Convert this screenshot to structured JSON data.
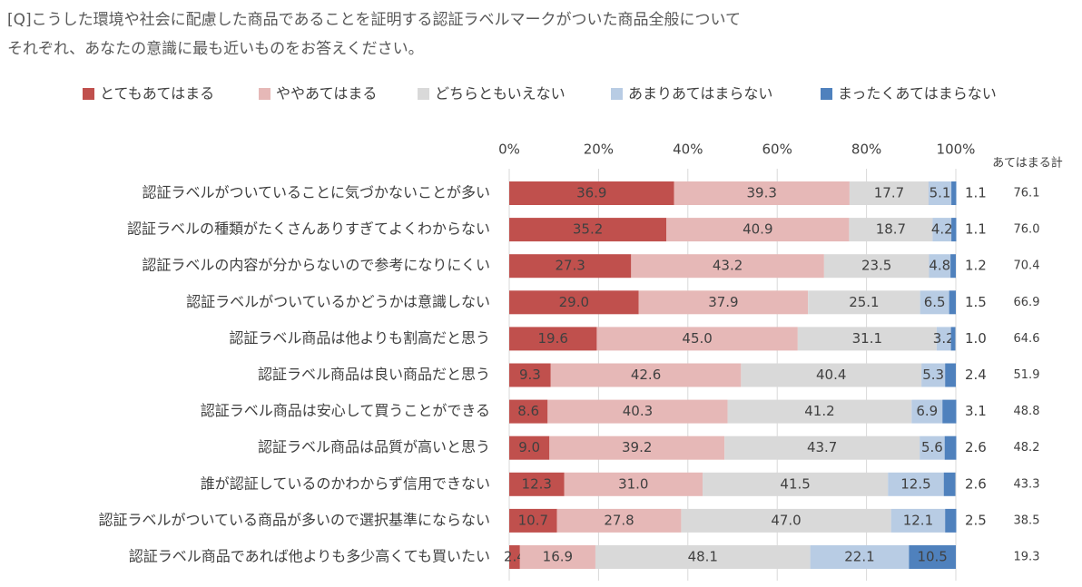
{
  "chart_data": {
    "type": "stacked_barh",
    "title": [
      "[Q]こうした環境や社会に配慮した商品であることを証明する認証ラベルマークがついた商品全般について",
      "それぞれ、あなたの意識に最も近いものをお答えください。"
    ],
    "categories": [
      "認証ラベルがついていることに気づかないことが多い",
      "認証ラベルの種類がたくさんありすぎてよくわからない",
      "認証ラベルの内容が分からないので参考になりにくい",
      "認証ラベルがついているかどうかは意識しない",
      "認証ラベル商品は他よりも割高だと思う",
      "認証ラベル商品は良い商品だと思う",
      "認証ラベル商品は安心して買うことができる",
      "認証ラベル商品は品質が高いと思う",
      "誰が認証しているのかわからず信用できない",
      "認証ラベルがついている商品が多いので選択基準にならない",
      "認証ラベル商品であれば他よりも多少高くても買いたい"
    ],
    "series": [
      {
        "name": "とてもあてはまる",
        "color": "#c0504d",
        "values": [
          36.9,
          35.2,
          27.3,
          29.0,
          19.6,
          9.3,
          8.6,
          9.0,
          12.3,
          10.7,
          2.4
        ],
        "value_labels": [
          "36.9",
          "35.2",
          "27.3",
          "29.0",
          "19.6",
          "9.3",
          "8.6",
          "9.0",
          "12.3",
          "10.7",
          "2.4"
        ]
      },
      {
        "name": "ややあてはまる",
        "color": "#e6b8b7",
        "values": [
          39.3,
          40.9,
          43.2,
          37.9,
          45.0,
          42.6,
          40.3,
          39.2,
          31.0,
          27.8,
          16.9
        ],
        "value_labels": [
          "39.3",
          "40.9",
          "43.2",
          "37.9",
          "45.0",
          "42.6",
          "40.3",
          "39.2",
          "31.0",
          "27.8",
          "16.9"
        ]
      },
      {
        "name": "どちらともいえない",
        "color": "#d9d9d9",
        "values": [
          17.7,
          18.7,
          23.5,
          25.1,
          31.1,
          40.4,
          41.2,
          43.7,
          41.5,
          47.0,
          48.1
        ],
        "value_labels": [
          "17.7",
          "18.7",
          "23.5",
          "25.1",
          "31.1",
          "40.4",
          "41.2",
          "43.7",
          "41.5",
          "47.0",
          "48.1"
        ]
      },
      {
        "name": "あまりあてはまらない",
        "color": "#b8cce4",
        "values": [
          5.1,
          4.2,
          4.8,
          6.5,
          3.2,
          5.3,
          6.9,
          5.6,
          12.5,
          12.1,
          22.1
        ],
        "value_labels": [
          "5.1",
          "4.2",
          "4.8",
          "6.5",
          "3.2",
          "5.3",
          "6.9",
          "5.6",
          "12.5",
          "12.1",
          "22.1"
        ]
      },
      {
        "name": "まったくあてはまらない",
        "color": "#4f81bd",
        "values": [
          1.1,
          1.1,
          1.2,
          1.5,
          1.0,
          2.4,
          3.1,
          2.6,
          2.6,
          2.5,
          10.5
        ],
        "value_labels": [
          "1.1",
          "1.1",
          "1.2",
          "1.5",
          "1.0",
          "2.4",
          "3.1",
          "2.6",
          "2.6",
          "2.5",
          "10.5"
        ]
      }
    ],
    "totals": {
      "label": "あてはまる計",
      "values": [
        76.1,
        76.0,
        70.4,
        66.9,
        64.6,
        51.9,
        48.8,
        48.2,
        43.3,
        38.5,
        19.3
      ],
      "value_labels": [
        "76.1",
        "76.0",
        "70.4",
        "66.9",
        "64.6",
        "51.9",
        "48.8",
        "48.2",
        "43.3",
        "38.5",
        "19.3"
      ]
    },
    "xlim": [
      0,
      100
    ],
    "xticks": [
      {
        "value": 0,
        "label": "0%"
      },
      {
        "value": 20,
        "label": "20%"
      },
      {
        "value": 40,
        "label": "40%"
      },
      {
        "value": 60,
        "label": "60%"
      },
      {
        "value": 80,
        "label": "80%"
      },
      {
        "value": 100,
        "label": "100%"
      }
    ],
    "grid": true,
    "legend": "top"
  }
}
